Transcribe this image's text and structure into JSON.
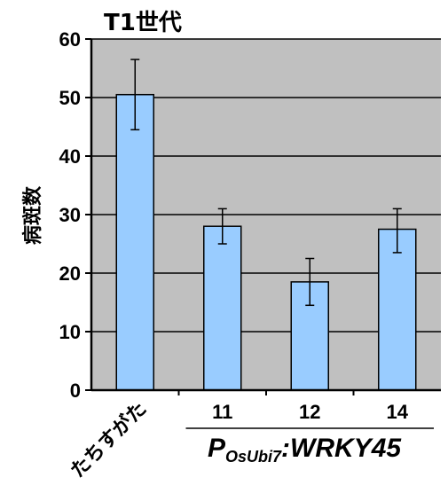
{
  "chart_data": {
    "type": "bar",
    "title": "T1世代",
    "ylabel": "病斑数",
    "xlabel": "",
    "ylim": [
      0,
      60
    ],
    "yticks": [
      0,
      10,
      20,
      30,
      40,
      50,
      60
    ],
    "grid": true,
    "categories": [
      "たちすがた",
      "11",
      "12",
      "14"
    ],
    "values": [
      50.5,
      28,
      18.5,
      27.5
    ],
    "error_low": [
      44.5,
      25,
      14.5,
      23.5
    ],
    "error_high": [
      56.5,
      31,
      22.5,
      31
    ],
    "group_label": {
      "prefix": "P",
      "subscript": "OsUbi7",
      "suffix": ":WRKY45",
      "applies_to": [
        "11",
        "12",
        "14"
      ]
    },
    "colors": {
      "bar": "#99ccff",
      "bar_edge": "#000000",
      "plot_bg": "#c0c0c0",
      "grid": "#000000"
    }
  }
}
